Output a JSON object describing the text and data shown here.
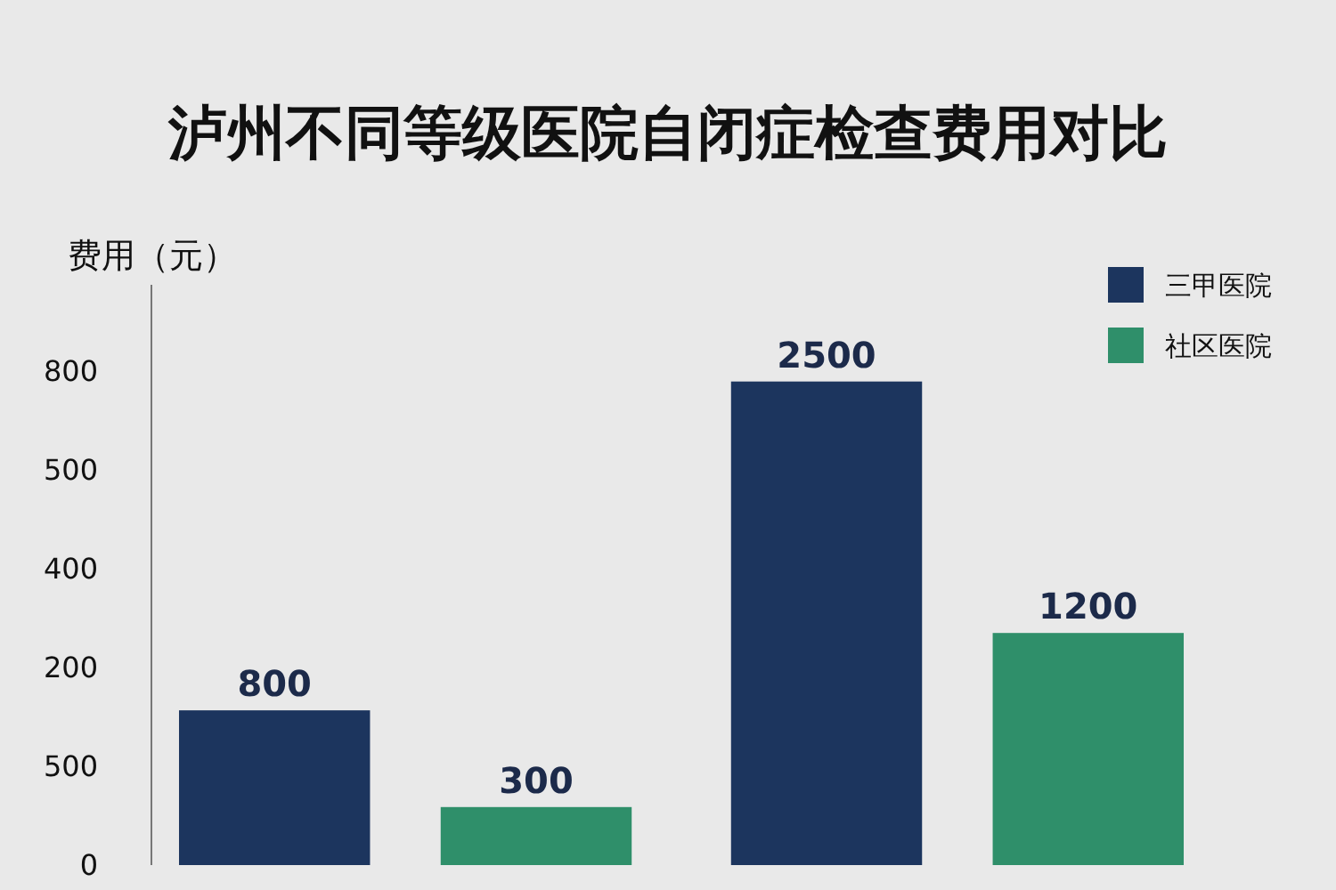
{
  "chart_data": {
    "type": "bar",
    "title": "泸州不同等级医院自闭症检查费用对比",
    "ylabel": "费用（元）",
    "categories": [
      null,
      null
    ],
    "series": [
      {
        "name": "三甲医院",
        "color": "#1c355e",
        "values": [
          800,
          2500
        ]
      },
      {
        "name": "社区医院",
        "color": "#2f8f6a",
        "values": [
          300,
          1200
        ]
      }
    ],
    "ylim": [
      0,
      3000
    ],
    "data_labels": true,
    "annotations": [
      "0",
      "500",
      "200",
      "400",
      "500",
      "800"
    ],
    "legend": "top right",
    "grid": false
  }
}
